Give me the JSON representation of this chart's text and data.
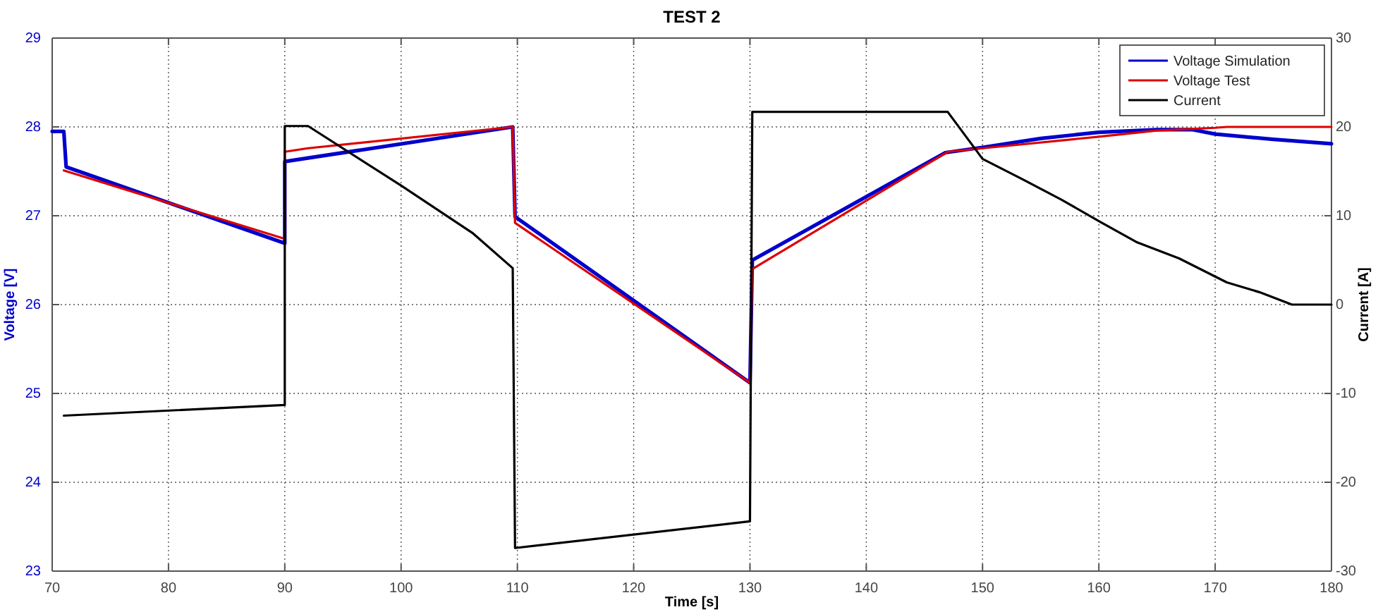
{
  "chart_data": {
    "type": "line",
    "title": "TEST 2",
    "xlabel": "Time [s]",
    "ylabel": "Voltage [V]",
    "y2label": "Current [A]",
    "xlim": [
      70,
      180
    ],
    "xticks": [
      70,
      80,
      90,
      100,
      110,
      120,
      130,
      140,
      150,
      160,
      170,
      180
    ],
    "ylim": [
      23,
      29
    ],
    "yticks": [
      23,
      24,
      25,
      26,
      27,
      28,
      29
    ],
    "y2lim": [
      -30,
      30
    ],
    "y2ticks": [
      -30,
      -20,
      -10,
      0,
      10,
      20,
      30
    ],
    "grid": true,
    "legend": "top right",
    "line_style": "solid",
    "marker": "none",
    "series": [
      {
        "name": "Voltage Simulation",
        "color": "#0000cc",
        "x": [
          70,
          71,
          71.2,
          90,
          90,
          109.6,
          109.8,
          130,
          130.2,
          146.8,
          150,
          155,
          160,
          165,
          168,
          170,
          175,
          177,
          180
        ],
        "values": [
          27.95,
          27.95,
          27.55,
          26.69,
          27.61,
          28.0,
          26.99,
          25.12,
          26.5,
          27.71,
          27.77,
          27.87,
          27.94,
          27.97,
          27.97,
          27.92,
          27.86,
          27.84,
          27.81
        ]
      },
      {
        "name": "Voltage Test",
        "color": "#dd0000",
        "x": [
          71,
          90,
          90,
          92,
          109.6,
          109.8,
          130,
          130.2,
          147,
          150,
          160,
          165,
          170,
          171,
          180
        ],
        "values": [
          27.51,
          26.74,
          27.72,
          27.76,
          28.0,
          26.92,
          25.12,
          26.4,
          27.72,
          27.76,
          27.89,
          27.96,
          27.99,
          28.0,
          28.0
        ]
      },
      {
        "name": "Current",
        "color": "#000000",
        "axis": "y2",
        "x": [
          71,
          90,
          90,
          92,
          100,
          106.2,
          109.6,
          109.8,
          130,
          130.2,
          147,
          150,
          153.3,
          156.8,
          160,
          163.3,
          166.9,
          171,
          173.8,
          176.6,
          180
        ],
        "values": [
          -12.5,
          -11.3,
          20.1,
          20.1,
          13.4,
          8.0,
          4.1,
          -27.4,
          -24.4,
          21.7,
          21.7,
          16.4,
          14.2,
          11.8,
          9.4,
          7.0,
          5.2,
          2.5,
          1.4,
          0,
          0
        ]
      }
    ]
  }
}
